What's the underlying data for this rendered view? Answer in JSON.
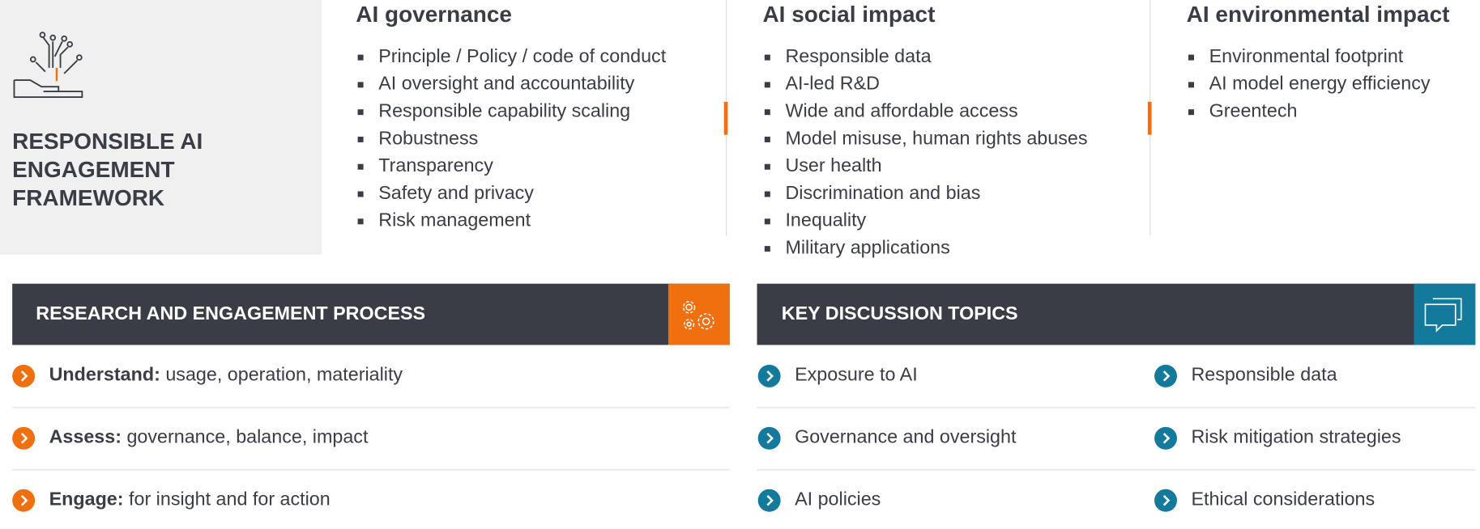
{
  "framework": {
    "title": "RESPONSIBLE AI ENGAGEMENT FRAMEWORK"
  },
  "columns": [
    {
      "title": "AI governance",
      "items": [
        "Principle / Policy / code of conduct",
        "AI oversight and accountability",
        "Responsible capability scaling",
        "Robustness",
        "Transparency",
        "Safety and privacy",
        "Risk management"
      ]
    },
    {
      "title": "AI social impact",
      "items": [
        "Responsible data",
        "AI-led R&D",
        "Wide and affordable access",
        "Model misuse, human rights abuses",
        "User health",
        "Discrimination and bias",
        "Inequality",
        "Military applications"
      ]
    },
    {
      "title": "AI environmental impact",
      "items": [
        "Environmental footprint",
        "AI model energy efficiency",
        "Greentech"
      ]
    }
  ],
  "process": {
    "title": "RESEARCH AND ENGAGEMENT PROCESS",
    "steps": [
      {
        "label": "Understand:",
        "text": "usage, operation, materiality"
      },
      {
        "label": "Assess:",
        "text": "governance, balance, impact"
      },
      {
        "label": "Engage:",
        "text": "for insight and for action"
      }
    ]
  },
  "topics": {
    "title": "KEY DISCUSSION TOPICS",
    "items": [
      "Exposure to AI",
      "Governance and oversight",
      "AI policies",
      "Responsible data",
      "Risk mitigation strategies",
      "Ethical considerations"
    ]
  }
}
